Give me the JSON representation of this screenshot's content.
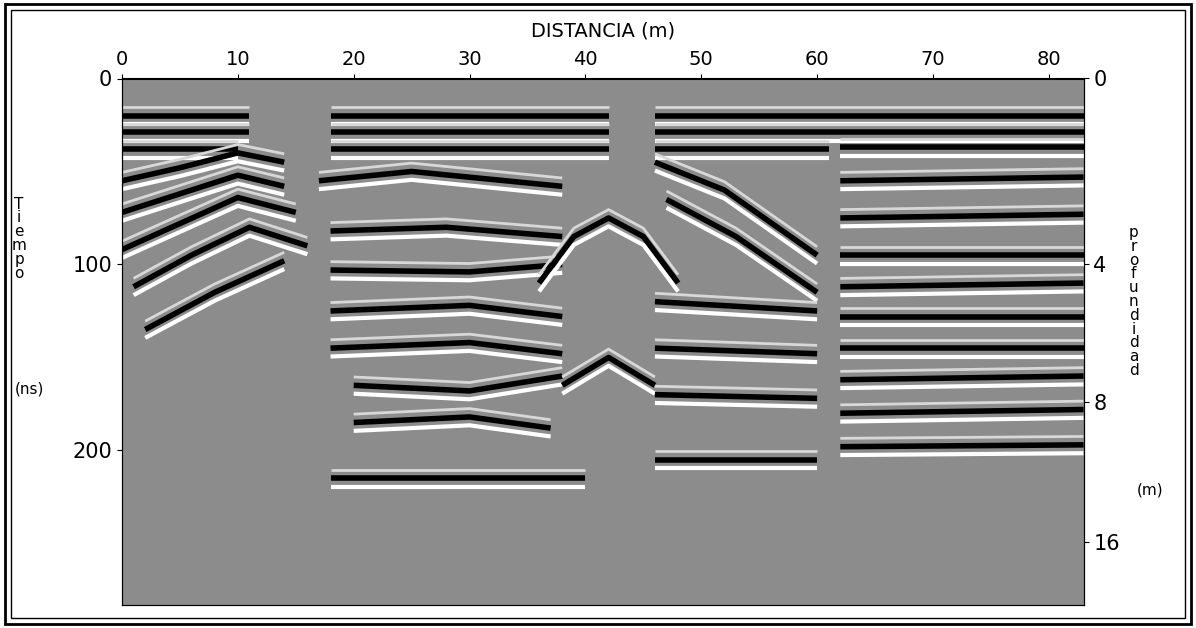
{
  "chart_data": {
    "type": "radargram",
    "xlabel": "DISTANCIA (m)",
    "ylabel": "Tiempo",
    "ylabel_unit": "(ns)",
    "y2label": "profundidad",
    "y2label_unit": "(m)",
    "xlim": [
      0,
      83
    ],
    "xticks": [
      0,
      10,
      20,
      30,
      40,
      50,
      60,
      70,
      80
    ],
    "ylim": [
      283,
      0
    ],
    "yticks": [
      0,
      100,
      200
    ],
    "depth_ticks": {
      "time": [
        0,
        100,
        174,
        249
      ],
      "depth": [
        0,
        4,
        8,
        16
      ]
    },
    "grid": false,
    "reflectors": [
      {
        "x": [
          0,
          11
        ],
        "t": [
          20,
          20
        ]
      },
      {
        "x": [
          18,
          42
        ],
        "t": [
          20,
          20
        ]
      },
      {
        "x": [
          46,
          83
        ],
        "t": [
          20,
          20
        ]
      },
      {
        "x": [
          0,
          11
        ],
        "t": [
          29,
          29
        ]
      },
      {
        "x": [
          18,
          42
        ],
        "t": [
          29,
          29
        ]
      },
      {
        "x": [
          46,
          83
        ],
        "t": [
          29,
          29
        ]
      },
      {
        "x": [
          0,
          10
        ],
        "t": [
          38,
          38
        ]
      },
      {
        "x": [
          18,
          42
        ],
        "t": [
          38,
          38
        ]
      },
      {
        "x": [
          46,
          61
        ],
        "t": [
          38,
          38
        ]
      },
      {
        "x": [
          62,
          83
        ],
        "t": [
          37,
          37
        ]
      },
      {
        "x": [
          0,
          5,
          10,
          14
        ],
        "t": [
          55,
          48,
          40,
          45
        ]
      },
      {
        "x": [
          0,
          5,
          10,
          14
        ],
        "t": [
          72,
          62,
          52,
          58
        ]
      },
      {
        "x": [
          0,
          5,
          10,
          15
        ],
        "t": [
          92,
          78,
          64,
          72
        ]
      },
      {
        "x": [
          1,
          6,
          11,
          16
        ],
        "t": [
          112,
          95,
          80,
          90
        ]
      },
      {
        "x": [
          2,
          8,
          14
        ],
        "t": [
          135,
          115,
          98
        ]
      },
      {
        "x": [
          17,
          25,
          38
        ],
        "t": [
          55,
          50,
          58
        ]
      },
      {
        "x": [
          18,
          28,
          38
        ],
        "t": [
          82,
          80,
          85
        ]
      },
      {
        "x": [
          18,
          30,
          38
        ],
        "t": [
          103,
          104,
          100
        ]
      },
      {
        "x": [
          18,
          30,
          38
        ],
        "t": [
          125,
          122,
          128
        ]
      },
      {
        "x": [
          18,
          30,
          38
        ],
        "t": [
          145,
          142,
          148
        ]
      },
      {
        "x": [
          20,
          30,
          38
        ],
        "t": [
          165,
          168,
          160
        ]
      },
      {
        "x": [
          20,
          30,
          37
        ],
        "t": [
          185,
          182,
          188
        ]
      },
      {
        "x": [
          36,
          39,
          42,
          45,
          48
        ],
        "t": [
          110,
          85,
          75,
          85,
          110
        ]
      },
      {
        "x": [
          38,
          42,
          46
        ],
        "t": [
          165,
          150,
          165
        ]
      },
      {
        "x": [
          46,
          52,
          60
        ],
        "t": [
          45,
          60,
          95
        ]
      },
      {
        "x": [
          47,
          53,
          60
        ],
        "t": [
          65,
          85,
          115
        ]
      },
      {
        "x": [
          46,
          60
        ],
        "t": [
          120,
          125
        ]
      },
      {
        "x": [
          46,
          60
        ],
        "t": [
          145,
          148
        ]
      },
      {
        "x": [
          46,
          60
        ],
        "t": [
          170,
          172
        ]
      },
      {
        "x": [
          62,
          83
        ],
        "t": [
          55,
          53
        ]
      },
      {
        "x": [
          62,
          83
        ],
        "t": [
          75,
          73
        ]
      },
      {
        "x": [
          62,
          83
        ],
        "t": [
          95,
          95
        ]
      },
      {
        "x": [
          62,
          83
        ],
        "t": [
          112,
          110
        ]
      },
      {
        "x": [
          62,
          83
        ],
        "t": [
          128,
          128
        ]
      },
      {
        "x": [
          62,
          83
        ],
        "t": [
          145,
          145
        ]
      },
      {
        "x": [
          62,
          83
        ],
        "t": [
          162,
          160
        ]
      },
      {
        "x": [
          62,
          83
        ],
        "t": [
          180,
          178
        ]
      },
      {
        "x": [
          62,
          83
        ],
        "t": [
          198,
          197
        ]
      },
      {
        "x": [
          18,
          40
        ],
        "t": [
          215,
          215
        ]
      },
      {
        "x": [
          46,
          60
        ],
        "t": [
          205,
          205
        ]
      }
    ]
  }
}
